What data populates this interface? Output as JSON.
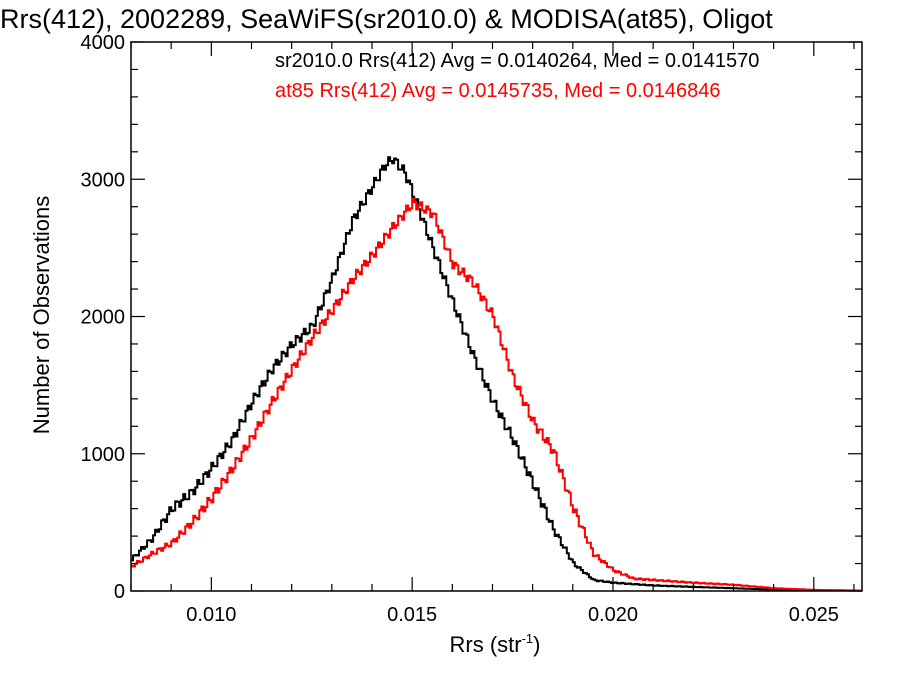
{
  "chart_data": {
    "type": "line",
    "step": true,
    "title": "Rrs(412), 2002289, SeaWiFS(sr2010.0) & MODISA(at85), Oligot",
    "xlabel_main": "Rrs (str",
    "xlabel_sup": "-1",
    "xlabel_end": ")",
    "ylabel": "Number of Observations",
    "xlim": [
      0.008,
      0.0262
    ],
    "ylim": [
      0,
      4000
    ],
    "xticks": [
      {
        "value": 0.01,
        "label": "0.010"
      },
      {
        "value": 0.015,
        "label": "0.015"
      },
      {
        "value": 0.02,
        "label": "0.020"
      },
      {
        "value": 0.025,
        "label": "0.025"
      }
    ],
    "yticks": [
      {
        "value": 0,
        "label": "0"
      },
      {
        "value": 1000,
        "label": "1000"
      },
      {
        "value": 2000,
        "label": "2000"
      },
      {
        "value": 3000,
        "label": "3000"
      },
      {
        "value": 4000,
        "label": "4000"
      }
    ],
    "x_minor_step": 0.001,
    "y_minor_step": 200,
    "grid": false,
    "series": [
      {
        "name": "sr2010.0 Rrs(412) Avg = 0.0140264, Med = 0.0141570",
        "color": "#000000",
        "points": [
          [
            0.008,
            230
          ],
          [
            0.0085,
            380
          ],
          [
            0.009,
            600
          ],
          [
            0.0095,
            720
          ],
          [
            0.01,
            900
          ],
          [
            0.0105,
            1100
          ],
          [
            0.011,
            1380
          ],
          [
            0.0115,
            1620
          ],
          [
            0.012,
            1800
          ],
          [
            0.0125,
            1930
          ],
          [
            0.013,
            2280
          ],
          [
            0.0135,
            2700
          ],
          [
            0.014,
            2950
          ],
          [
            0.0143,
            3100
          ],
          [
            0.0145,
            3150
          ],
          [
            0.0148,
            3050
          ],
          [
            0.015,
            2900
          ],
          [
            0.0155,
            2500
          ],
          [
            0.016,
            2100
          ],
          [
            0.0165,
            1720
          ],
          [
            0.017,
            1380
          ],
          [
            0.0175,
            1100
          ],
          [
            0.018,
            780
          ],
          [
            0.0185,
            450
          ],
          [
            0.019,
            200
          ],
          [
            0.0195,
            80
          ],
          [
            0.02,
            60
          ],
          [
            0.0205,
            50
          ],
          [
            0.021,
            40
          ],
          [
            0.022,
            30
          ],
          [
            0.023,
            20
          ],
          [
            0.024,
            10
          ],
          [
            0.025,
            5
          ],
          [
            0.0262,
            3
          ]
        ]
      },
      {
        "name": "at85 Rrs(412) Avg = 0.0145735, Med = 0.0146846",
        "color": "#ff0000",
        "points": [
          [
            0.008,
            180
          ],
          [
            0.0085,
            270
          ],
          [
            0.009,
            350
          ],
          [
            0.0095,
            500
          ],
          [
            0.01,
            680
          ],
          [
            0.0105,
            890
          ],
          [
            0.011,
            1120
          ],
          [
            0.0115,
            1380
          ],
          [
            0.012,
            1620
          ],
          [
            0.0125,
            1850
          ],
          [
            0.013,
            2050
          ],
          [
            0.0135,
            2270
          ],
          [
            0.014,
            2450
          ],
          [
            0.0145,
            2650
          ],
          [
            0.015,
            2830
          ],
          [
            0.0155,
            2750
          ],
          [
            0.016,
            2380
          ],
          [
            0.0165,
            2250
          ],
          [
            0.017,
            2000
          ],
          [
            0.0175,
            1550
          ],
          [
            0.018,
            1230
          ],
          [
            0.0185,
            1020
          ],
          [
            0.019,
            600
          ],
          [
            0.0195,
            270
          ],
          [
            0.02,
            150
          ],
          [
            0.0205,
            90
          ],
          [
            0.021,
            80
          ],
          [
            0.022,
            60
          ],
          [
            0.023,
            45
          ],
          [
            0.024,
            20
          ],
          [
            0.025,
            8
          ],
          [
            0.0262,
            3
          ]
        ]
      }
    ]
  }
}
